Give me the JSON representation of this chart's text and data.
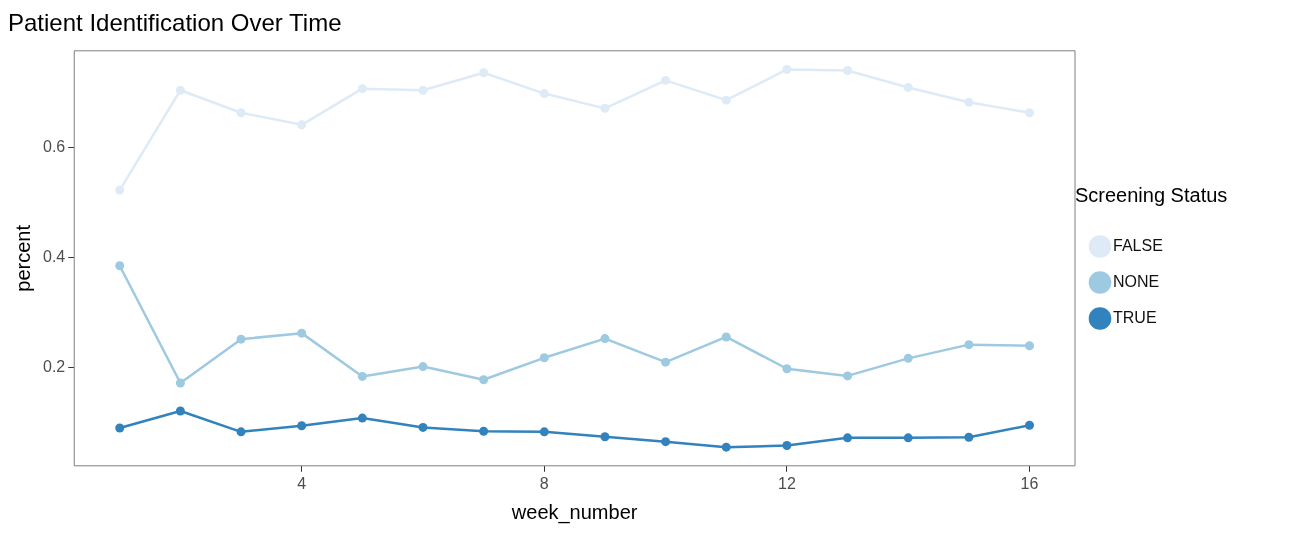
{
  "chart_data": {
    "type": "line",
    "title": "Patient Identification Over Time",
    "xlabel": "week_number",
    "ylabel": "percent",
    "legend_title": "Screening Status",
    "x": [
      1,
      2,
      3,
      4,
      5,
      6,
      7,
      8,
      9,
      10,
      11,
      12,
      13,
      14,
      15,
      16
    ],
    "series": [
      {
        "name": "FALSE",
        "color": "#deebf7",
        "values": [
          0.523,
          0.705,
          0.664,
          0.642,
          0.708,
          0.705,
          0.737,
          0.699,
          0.672,
          0.723,
          0.687,
          0.743,
          0.741,
          0.71,
          0.683,
          0.664
        ]
      },
      {
        "name": "NONE",
        "color": "#9ecae1",
        "values": [
          0.385,
          0.171,
          0.251,
          0.262,
          0.183,
          0.201,
          0.177,
          0.217,
          0.252,
          0.209,
          0.255,
          0.197,
          0.184,
          0.216,
          0.241,
          0.239
        ]
      },
      {
        "name": "TRUE",
        "color": "#3182bd",
        "values": [
          0.089,
          0.12,
          0.082,
          0.093,
          0.107,
          0.09,
          0.083,
          0.082,
          0.073,
          0.064,
          0.054,
          0.057,
          0.071,
          0.071,
          0.072,
          0.094
        ]
      }
    ],
    "xlim": [
      0.25,
      16.75
    ],
    "xticks": [
      4,
      8,
      12,
      16
    ],
    "ylim": [
      0.02,
      0.777
    ],
    "yticks": [
      0.2,
      0.4,
      0.6
    ],
    "grid": false,
    "legend": "right",
    "marker": "circle",
    "line_style": "solid"
  }
}
